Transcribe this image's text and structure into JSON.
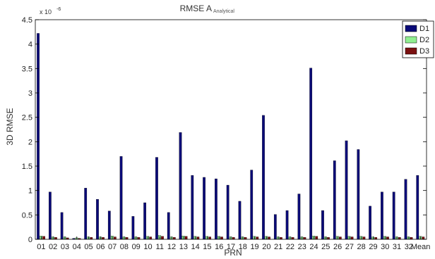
{
  "chart_data": {
    "type": "bar",
    "title": "RMSE A",
    "title_sub": "Analytical",
    "xlabel": "PRN",
    "ylabel": "3D RMSE",
    "exponent_label": "x 10",
    "exponent_power": "-6",
    "ylim": [
      0,
      4.5
    ],
    "yticks": [
      0,
      0.5,
      1,
      1.5,
      2,
      2.5,
      3,
      3.5,
      4,
      4.5
    ],
    "ytick_labels": [
      "0",
      "0.5",
      "1",
      "1.5",
      "2",
      "2.5",
      "3",
      "3.5",
      "4",
      "4.5"
    ],
    "grid": false,
    "legend_position": "top-right",
    "categories": [
      "01",
      "02",
      "03",
      "04",
      "05",
      "06",
      "07",
      "08",
      "09",
      "10",
      "11",
      "12",
      "13",
      "14",
      "15",
      "16",
      "17",
      "18",
      "19",
      "20",
      "21",
      "22",
      "23",
      "24",
      "25",
      "26",
      "27",
      "28",
      "29",
      "30",
      "31",
      "32",
      "Mean"
    ],
    "category_labels": [
      "01",
      "02",
      "03",
      "04",
      "05",
      "06",
      "07",
      "08",
      "09",
      "10",
      "11",
      "12",
      "13",
      "14",
      "15",
      "16",
      "17",
      "18",
      "19",
      "20",
      "21",
      "22",
      "23",
      "24",
      "25",
      "26",
      "27",
      "28",
      "29",
      "30",
      "31",
      "32",
      "Mean"
    ],
    "series": [
      {
        "name": "D1",
        "color": "#0a0a78",
        "values": [
          4.22,
          0.97,
          0.55,
          0.02,
          1.05,
          0.82,
          0.58,
          1.7,
          0.47,
          0.75,
          1.68,
          0.55,
          2.19,
          1.31,
          1.27,
          1.24,
          1.11,
          0.78,
          1.42,
          2.54,
          0.51,
          0.59,
          0.93,
          3.51,
          0.59,
          1.61,
          2.02,
          1.84,
          0.68,
          0.97,
          0.97,
          1.23,
          1.31
        ]
      },
      {
        "name": "D2",
        "color": "#90ee90",
        "values": [
          0.07,
          0.05,
          0.05,
          0.03,
          0.05,
          0.05,
          0.07,
          0.05,
          0.05,
          0.06,
          0.08,
          0.05,
          0.07,
          0.06,
          0.06,
          0.06,
          0.05,
          0.05,
          0.06,
          0.06,
          0.05,
          0.05,
          0.05,
          0.07,
          0.05,
          0.06,
          0.06,
          0.06,
          0.05,
          0.06,
          0.05,
          0.05,
          0.06
        ]
      },
      {
        "name": "D3",
        "color": "#7a1010",
        "values": [
          0.06,
          0.04,
          0.03,
          0.02,
          0.04,
          0.04,
          0.05,
          0.04,
          0.04,
          0.05,
          0.06,
          0.04,
          0.06,
          0.05,
          0.05,
          0.05,
          0.04,
          0.04,
          0.05,
          0.05,
          0.04,
          0.04,
          0.04,
          0.06,
          0.04,
          0.05,
          0.05,
          0.05,
          0.04,
          0.05,
          0.04,
          0.04,
          0.05
        ]
      }
    ]
  }
}
